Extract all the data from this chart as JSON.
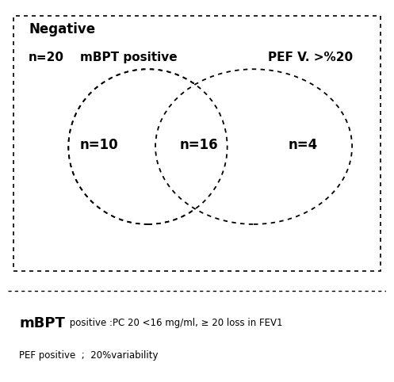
{
  "negative_label": "Negative",
  "n20_label": "n=20",
  "mbpt_label": "mBPT positive",
  "pef_label": "PEF V. >%20",
  "n10_label": "n=10",
  "n16_label": "n=16",
  "n4_label": "n=4",
  "mbpt_footnote_bold": "mBPT",
  "mbpt_footnote_rest": " positive :PC 20 <16 mg/ml, ≥ 20 loss in FEV1",
  "pef_footnote": "PEF positive  ;  20%variability",
  "background_color": "#ffffff",
  "text_color": "#000000",
  "dash_on": 3,
  "dash_off": 3
}
